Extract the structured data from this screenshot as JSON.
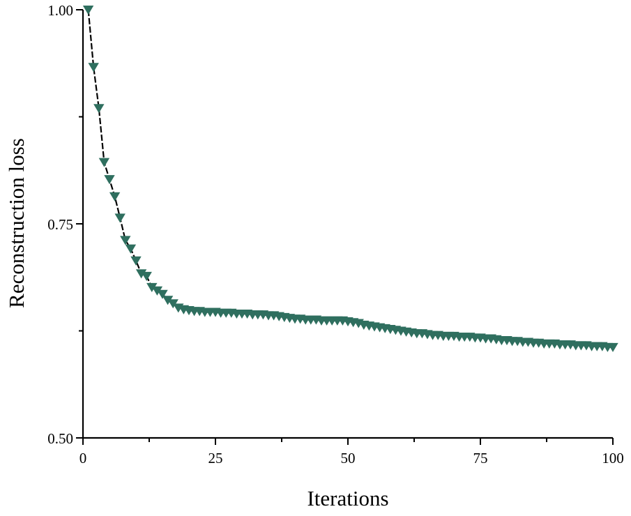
{
  "chart_data": {
    "type": "line",
    "title": "",
    "xlabel": "Iterations",
    "ylabel": "Reconstruction loss",
    "xlim": [
      0,
      100
    ],
    "ylim": [
      0.5,
      1.0
    ],
    "x_ticks": [
      0,
      25,
      50,
      75,
      100
    ],
    "x_tick_labels": [
      "0",
      "25",
      "50",
      "75",
      "100"
    ],
    "y_ticks": [
      0.5,
      0.75,
      1.0
    ],
    "y_tick_labels": [
      "0.50",
      "0.75",
      "1.00"
    ],
    "grid": false,
    "legend": "none",
    "marker": "triangle-down",
    "colors": {
      "marker": "#2f6f5f",
      "line": "#000000",
      "axis": "#000000"
    },
    "series": [
      {
        "x": [
          1,
          2,
          3,
          4,
          5,
          6,
          7,
          8,
          9,
          10,
          11,
          12,
          13,
          14,
          15,
          16,
          17,
          18,
          19,
          20,
          21,
          22,
          23,
          24,
          25,
          26,
          27,
          28,
          29,
          30,
          31,
          32,
          33,
          34,
          35,
          36,
          37,
          38,
          39,
          40,
          41,
          42,
          43,
          44,
          45,
          46,
          47,
          48,
          49,
          50,
          51,
          52,
          53,
          54,
          55,
          56,
          57,
          58,
          59,
          60,
          61,
          62,
          63,
          64,
          65,
          66,
          67,
          68,
          69,
          70,
          71,
          72,
          73,
          74,
          75,
          76,
          77,
          78,
          79,
          80,
          81,
          82,
          83,
          84,
          85,
          86,
          87,
          88,
          89,
          90,
          91,
          92,
          93,
          94,
          95,
          96,
          97,
          98,
          99,
          100
        ],
        "values": [
          1.0,
          0.933,
          0.885,
          0.822,
          0.802,
          0.782,
          0.757,
          0.731,
          0.721,
          0.707,
          0.692,
          0.689,
          0.676,
          0.672,
          0.668,
          0.661,
          0.657,
          0.652,
          0.65,
          0.649,
          0.648,
          0.648,
          0.647,
          0.647,
          0.647,
          0.646,
          0.646,
          0.646,
          0.645,
          0.645,
          0.645,
          0.644,
          0.644,
          0.644,
          0.643,
          0.643,
          0.642,
          0.641,
          0.64,
          0.639,
          0.639,
          0.638,
          0.638,
          0.638,
          0.637,
          0.637,
          0.637,
          0.637,
          0.637,
          0.636,
          0.635,
          0.634,
          0.632,
          0.631,
          0.63,
          0.629,
          0.628,
          0.627,
          0.626,
          0.625,
          0.624,
          0.623,
          0.622,
          0.622,
          0.621,
          0.62,
          0.62,
          0.619,
          0.619,
          0.619,
          0.618,
          0.618,
          0.618,
          0.617,
          0.617,
          0.616,
          0.616,
          0.615,
          0.614,
          0.614,
          0.613,
          0.613,
          0.612,
          0.612,
          0.611,
          0.611,
          0.61,
          0.61,
          0.61,
          0.609,
          0.609,
          0.609,
          0.608,
          0.608,
          0.608,
          0.607,
          0.607,
          0.607,
          0.606,
          0.606
        ]
      }
    ]
  }
}
